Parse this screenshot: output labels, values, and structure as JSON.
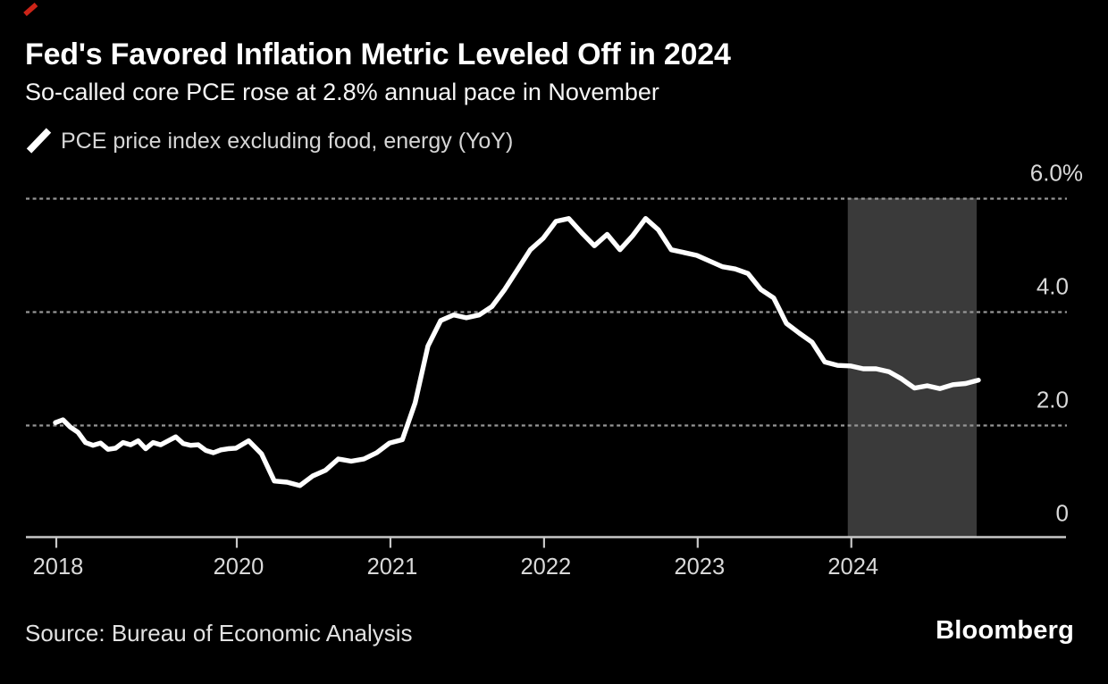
{
  "header": {
    "title": "Fed's Favored Inflation Metric Leveled Off in 2024",
    "subtitle": "So-called core PCE rose at 2.8% annual pace in November"
  },
  "legend": {
    "label": "PCE price index excluding food, energy (YoY)"
  },
  "footer": {
    "source": "Source: Bureau of Economic Analysis",
    "brand": "Bloomberg"
  },
  "colors": {
    "background": "#000000",
    "accent_red": "#cc2418",
    "line": "#ffffff",
    "highlight_band": "#3a3a3a",
    "gridline": "#969696",
    "axis": "#c8c8c8",
    "tick_label": "#d9d9d9"
  },
  "chart_data": {
    "type": "line",
    "title": "Fed's Favored Inflation Metric Leveled Off in 2024",
    "subtitle": "So-called core PCE rose at 2.8% annual pace in November",
    "series_name": "PCE price index excluding food, energy (YoY)",
    "unit": "%",
    "frequency": "monthly",
    "x_start": "2018-01",
    "x_end": "2024-11",
    "ylim": [
      0,
      6
    ],
    "grid": "dashed horizontal",
    "legend_position": "top-left",
    "y_axis": [
      {
        "label": "6.0%",
        "value": 6.0,
        "gridline": true
      },
      {
        "label": "4.0",
        "value": 4.0,
        "gridline": true
      },
      {
        "label": "2.0",
        "value": 2.0,
        "gridline": true
      },
      {
        "label": "0",
        "value": 0.0,
        "gridline": false
      }
    ],
    "x_ticks": [
      {
        "label": "2018",
        "month_index": 0
      },
      {
        "label": "2020",
        "month_index": 24
      },
      {
        "label": "2021",
        "month_index": 36
      },
      {
        "label": "2022",
        "month_index": 48
      },
      {
        "label": "2023",
        "month_index": 60
      },
      {
        "label": "2024",
        "month_index": 72
      }
    ],
    "highlight_band": {
      "label": "2024",
      "from_month_index": 72,
      "to_month_index": 82
    },
    "values": [
      2.05,
      2.1,
      1.97,
      1.88,
      1.7,
      1.65,
      1.69,
      1.58,
      1.6,
      1.7,
      1.66,
      1.73,
      1.59,
      1.7,
      1.66,
      1.73,
      1.8,
      1.68,
      1.65,
      1.66,
      1.56,
      1.52,
      1.57,
      1.59,
      1.6,
      1.73,
      1.5,
      1.02,
      1.0,
      0.94,
      1.11,
      1.21,
      1.41,
      1.37,
      1.41,
      1.52,
      1.69,
      1.75,
      2.4,
      3.4,
      3.85,
      3.95,
      3.9,
      3.95,
      4.1,
      4.4,
      4.75,
      5.1,
      5.3,
      5.6,
      5.65,
      5.4,
      5.17,
      5.37,
      5.1,
      5.35,
      5.65,
      5.45,
      5.1,
      5.05,
      5.0,
      4.9,
      4.8,
      4.76,
      4.68,
      4.4,
      4.25,
      3.8,
      3.63,
      3.47,
      3.12,
      3.06,
      3.05,
      3.0,
      3.0,
      2.95,
      2.82,
      2.66,
      2.7,
      2.65,
      2.72,
      2.74,
      2.8
    ],
    "last_point": {
      "date": "2024-11",
      "value": 2.8
    }
  }
}
